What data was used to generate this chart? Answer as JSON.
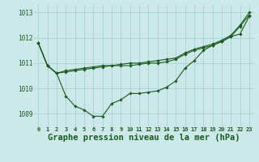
{
  "xlabel": "Graphe pression niveau de la mer (hPa)",
  "ylim": [
    1008.5,
    1013.3
  ],
  "xlim": [
    -0.5,
    23.5
  ],
  "yticks": [
    1009,
    1010,
    1011,
    1012,
    1013
  ],
  "xticks": [
    0,
    1,
    2,
    3,
    4,
    5,
    6,
    7,
    8,
    9,
    10,
    11,
    12,
    13,
    14,
    15,
    16,
    17,
    18,
    19,
    20,
    21,
    22,
    23
  ],
  "line_color": "#1a5c1a",
  "bg_color": "#cce8ea",
  "grid_color": "#9ecece",
  "series1": [
    1011.8,
    1010.9,
    1010.6,
    1010.7,
    1010.75,
    1010.8,
    1010.85,
    1010.9,
    1010.9,
    1010.95,
    1011.0,
    1011.0,
    1011.05,
    1011.1,
    1011.15,
    1011.2,
    1011.4,
    1011.55,
    1011.65,
    1011.75,
    1011.9,
    1012.1,
    1012.5,
    1013.0
  ],
  "series2": [
    1011.8,
    1010.9,
    1010.6,
    1010.65,
    1010.7,
    1010.75,
    1010.8,
    1010.85,
    1010.9,
    1010.9,
    1010.9,
    1010.95,
    1011.0,
    1011.0,
    1011.05,
    1011.15,
    1011.35,
    1011.5,
    1011.6,
    1011.7,
    1011.85,
    1012.05,
    1012.45,
    1012.9
  ],
  "series3": [
    1011.8,
    1010.9,
    1010.6,
    1009.7,
    1009.3,
    1009.15,
    1008.9,
    1008.9,
    1009.4,
    1009.55,
    1009.8,
    1009.8,
    1009.85,
    1009.9,
    1010.05,
    1010.3,
    1010.8,
    1011.1,
    1011.5,
    1011.7,
    1011.85,
    1012.05,
    1012.15,
    1012.85
  ],
  "marker": "D",
  "markersize": 1.8,
  "linewidth": 0.8,
  "xlabel_fontsize": 7.5,
  "tick_fontsize": 5.0
}
